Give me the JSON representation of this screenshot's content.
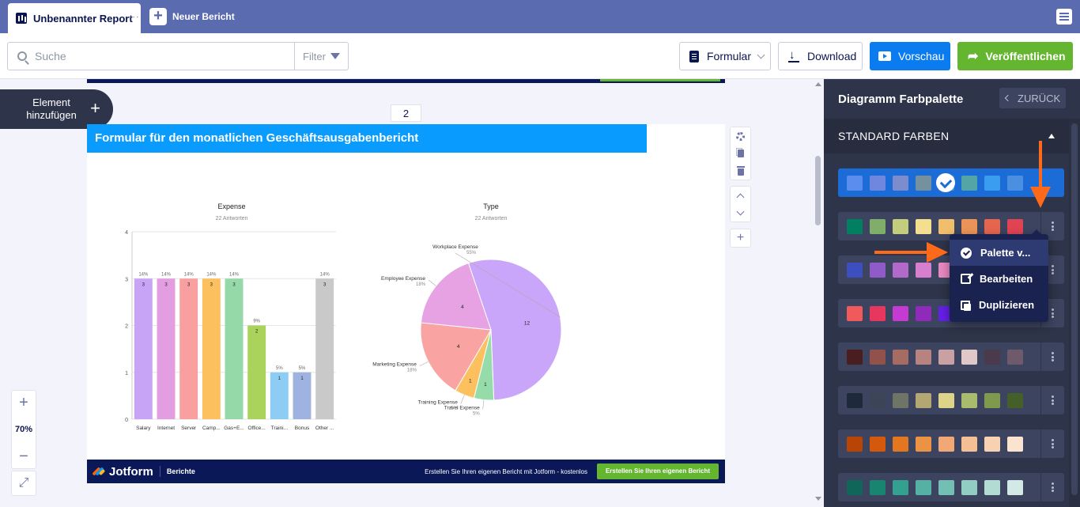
{
  "tabs": {
    "active_label": "Unbenannter Report",
    "new_label": "Neuer Bericht"
  },
  "toolbar": {
    "search_placeholder": "Suche",
    "filter_label": "Filter",
    "formular_label": "Formular",
    "download_label": "Download",
    "vorschau_label": "Vorschau",
    "publish_label": "Veröffentlichen"
  },
  "canvas": {
    "add_element_label": "Element hinzufügen",
    "page_number": "2",
    "zoom_level": "70%"
  },
  "report": {
    "header_title": "Formular für den monatlichen Geschäftsausgabenbericht",
    "footer_brand": "Jotform",
    "footer_sub": "Berichte",
    "footer_cta_text": "Erstellen Sie Ihren eigenen Bericht mit Jotform - kostenlos",
    "footer_cta_button": "Erstellen Sie Ihren eigenen Bericht"
  },
  "chart_data": [
    {
      "type": "bar",
      "title": "Expense",
      "subtitle": "22 Antworten",
      "categories": [
        "Salary",
        "Internet",
        "Server",
        "Camp...",
        "Gas+E...",
        "Office...",
        "Traini...",
        "Bonus",
        "Other ..."
      ],
      "values": [
        3,
        3,
        3,
        3,
        3,
        2,
        1,
        1,
        3
      ],
      "percent_labels": [
        "14%",
        "14%",
        "14%",
        "14%",
        "14%",
        "9%",
        "5%",
        "5%",
        "14%"
      ],
      "colors": [
        "#c7a4f5",
        "#e29ee0",
        "#f99f9f",
        "#fdc05e",
        "#95d9a8",
        "#aad35b",
        "#8dcdf5",
        "#9fb3e0",
        "#c9c9c9"
      ],
      "ylim": [
        0,
        4
      ],
      "yticks": [
        0,
        1,
        2,
        3,
        4
      ],
      "grid": true
    },
    {
      "type": "pie",
      "title": "Type",
      "subtitle": "22 Antworten",
      "slices": [
        {
          "label": "Workplace Expense",
          "value": 12,
          "percent": "55%",
          "color": "#c9a6f9"
        },
        {
          "label": "Travel Expense",
          "value": 1,
          "percent": "5%",
          "color": "#95dcaa"
        },
        {
          "label": "Training Expense",
          "value": 1,
          "percent": "5%",
          "color": "#fdc05e"
        },
        {
          "label": "Marketing Expense",
          "value": 4,
          "percent": "18%",
          "color": "#f9a3a3"
        },
        {
          "label": "Employee Expense",
          "value": 4,
          "percent": "18%",
          "color": "#e6a2e2"
        }
      ]
    }
  ],
  "panel": {
    "title": "Diagramm Farbpalette",
    "back_label": "ZURÜCK",
    "section_label": "STANDARD FARBEN",
    "palettes": [
      {
        "colors": [
          "#5b8def",
          "#6f87de",
          "#7c8ccc",
          "#76919e",
          "#3b93e6",
          "#53a6a5",
          "#3a9df0",
          "#4a8fe0"
        ],
        "selected": true
      },
      {
        "colors": [
          "#008060",
          "#7fae6a",
          "#c3cd7d",
          "#f4de8f",
          "#f1be6b",
          "#ec9457",
          "#e6654e",
          "#e04353"
        ],
        "selected": false
      },
      {
        "colors": [
          "#3d4fc0",
          "#8e5bc9",
          "#b269c9",
          "#d77fcf",
          "#e889c2"
        ],
        "selected": false
      },
      {
        "colors": [
          "#f05a5a",
          "#e8375e",
          "#c43bd1",
          "#8f2bb8",
          "#6420e6"
        ],
        "selected": false
      },
      {
        "colors": [
          "#4a1e1e",
          "#92514a",
          "#a66b63",
          "#b78380",
          "#c9a1a2",
          "#e0c8c8",
          "#4b3a4c",
          "#6f5a6b"
        ],
        "selected": false
      },
      {
        "colors": [
          "#1e2a3a",
          "#3c4555",
          "#6e7566",
          "#b3a874",
          "#ddd48a",
          "#a9bb6c",
          "#7f9a4c",
          "#445f28"
        ],
        "selected": false
      },
      {
        "colors": [
          "#b84406",
          "#d4590d",
          "#e3761f",
          "#ec9245",
          "#f2a874",
          "#f5bf96",
          "#f7d1b2",
          "#fae3cf"
        ],
        "selected": false
      },
      {
        "colors": [
          "#0f6659",
          "#188571",
          "#34a08f",
          "#55b1a3",
          "#73bfb3",
          "#92cdc3",
          "#b2dbd4",
          "#d2e9e5"
        ],
        "selected": false
      }
    ],
    "menu": {
      "items": [
        "Palette v...",
        "Bearbeiten",
        "Duplizieren"
      ]
    }
  }
}
